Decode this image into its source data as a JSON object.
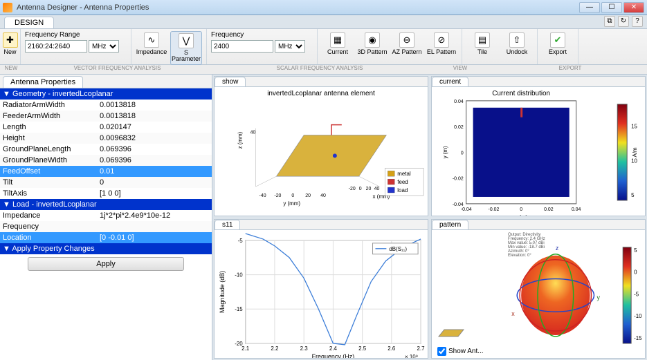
{
  "window": {
    "title": "Antenna Designer - Antenna Properties",
    "accent": "#bcd7ef"
  },
  "tabs": {
    "design": "DESIGN"
  },
  "helpbar": {
    "help_icon": "?",
    "doc_icon": "⧉",
    "reset_icon": "↻"
  },
  "winbtns": {
    "min": "—",
    "max": "☐",
    "close": "✕"
  },
  "ribbon": {
    "new_label": "New",
    "frequency_range_label": "Frequency Range",
    "frequency_range_value": "2160:24:2640",
    "frequency_range_unit": "MHz",
    "impedance_label": "Impedance",
    "sparam_label": "S Parameter",
    "frequency_label": "Frequency",
    "frequency_value": "2400",
    "frequency_unit": "MHz",
    "current_label": "Current",
    "pattern3d_label": "3D Pattern",
    "azpattern_label": "AZ Pattern",
    "elpattern_label": "EL Pattern",
    "tile_label": "Tile",
    "undock_label": "Undock",
    "export_label": "Export",
    "group_new": "NEW",
    "group_vfa": "VECTOR FREQUENCY ANALYSIS",
    "group_sfa": "SCALAR FREQUENCY ANALYSIS",
    "group_view": "VIEW",
    "group_export": "EXPORT"
  },
  "leftpanel": {
    "tab_label": "Antenna Properties",
    "geometry_header": "▼ Geometry - invertedLcoplanar",
    "geometry_rows": [
      {
        "k": "RadiatorArmWidth",
        "v": "0.0013818"
      },
      {
        "k": "FeederArmWidth",
        "v": "0.0013818"
      },
      {
        "k": "Length",
        "v": "0.020147"
      },
      {
        "k": "Height",
        "v": "0.0096832"
      },
      {
        "k": "GroundPlaneLength",
        "v": "0.069396"
      },
      {
        "k": "GroundPlaneWidth",
        "v": "0.069396"
      },
      {
        "k": "FeedOffset",
        "v": "0.01"
      },
      {
        "k": "Tilt",
        "v": "0"
      },
      {
        "k": "TiltAxis",
        "v": "[1 0 0]"
      }
    ],
    "geometry_selected_index": 6,
    "load_header": "▼ Load - invertedLcoplanar",
    "load_rows": [
      {
        "k": "Impedance",
        "v": "1j*2*pi*2.4e9*10e-12"
      },
      {
        "k": "Frequency",
        "v": ""
      },
      {
        "k": "Location",
        "v": "[0 -0.01 0]"
      }
    ],
    "load_selected_index": 2,
    "apply_header": "▼ Apply Property Changes",
    "apply_button": "Apply"
  },
  "plots": {
    "show": {
      "tab": "show",
      "title": "invertedLcoplanar antenna element",
      "xaxis": "x (mm)",
      "yaxis": "y (mm)",
      "zaxis": "z (mm)",
      "xtick": [
        "-20",
        "0",
        "20",
        "40"
      ],
      "ytick": [
        "-40",
        "-20",
        "0",
        "20",
        "40"
      ],
      "ztick": [
        "40"
      ],
      "legend": [
        {
          "label": "metal",
          "color": "#d4a017"
        },
        {
          "label": "feed",
          "color": "#cc3333"
        },
        {
          "label": "load",
          "color": "#2233cc"
        }
      ],
      "plane_color": "#d9b23d",
      "feed_dot": "#2233cc"
    },
    "current": {
      "tab": "current",
      "title": "Current distribution",
      "xaxis": "x (m)",
      "yaxis": "y (m)",
      "xtick": [
        "-0.04",
        "-0.02",
        "0",
        "0.02",
        "0.04"
      ],
      "ytick": [
        "-0.04",
        "-0.02",
        "0",
        "0.02",
        "0.04"
      ],
      "colorbar_label": "A/m",
      "colorbar_ticks": [
        "5",
        "10",
        "15"
      ],
      "bg": "#08108a",
      "feed_color": "#cc3333",
      "colorbar_stops": [
        "#08108a",
        "#2060d0",
        "#20c0a0",
        "#f0e020",
        "#e03020",
        "#800010"
      ]
    },
    "s11": {
      "tab": "s11",
      "legend": "dB(S₁₁)",
      "xaxis": "Frequency (Hz)",
      "yaxis": "Magnitude (dB)",
      "xmult": "× 10⁹",
      "xtick": [
        "2.1",
        "2.2",
        "2.3",
        "2.4",
        "2.5",
        "2.6",
        "2.7"
      ],
      "ytick": [
        "-20",
        "-15",
        "-10",
        "-5"
      ],
      "line_color": "#3b7dd8",
      "data": [
        {
          "x": 2.1,
          "y": -4.0
        },
        {
          "x": 2.16,
          "y": -4.8
        },
        {
          "x": 2.2,
          "y": -5.8
        },
        {
          "x": 2.25,
          "y": -7.5
        },
        {
          "x": 2.3,
          "y": -10.5
        },
        {
          "x": 2.35,
          "y": -15.0
        },
        {
          "x": 2.4,
          "y": -20.0
        },
        {
          "x": 2.44,
          "y": -20.2
        },
        {
          "x": 2.48,
          "y": -16.0
        },
        {
          "x": 2.53,
          "y": -11.0
        },
        {
          "x": 2.58,
          "y": -8.0
        },
        {
          "x": 2.64,
          "y": -6.0
        },
        {
          "x": 2.7,
          "y": -4.8
        }
      ]
    },
    "pattern": {
      "tab": "pattern",
      "meta_text": "Output: Directivity\nFrequency: 2.4 GHz\nMax value: 5.07 dBi\nMin value: -18.7 dBi\nAzimuth: 0°\nElevation: 0°",
      "show_ant_label": "Show Ant...",
      "colorbar_ticks": [
        "-15",
        "-10",
        "-5",
        "0",
        "5"
      ],
      "colorbar_stops": [
        "#08108a",
        "#2060d0",
        "#20c0a0",
        "#f0e020",
        "#e03020",
        "#800010"
      ],
      "axis_x": "x",
      "axis_y": "y",
      "axis_z": "z",
      "lobe_color": "#d93020",
      "ring_colors": [
        "#cc2222",
        "#22aa22",
        "#2244cc"
      ]
    }
  }
}
